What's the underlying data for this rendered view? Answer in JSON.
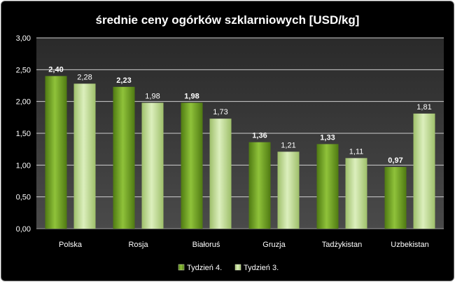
{
  "chart_data": {
    "type": "bar",
    "title": "średnie ceny ogórków szklarniowych [USD/kg]",
    "categories": [
      "Polska",
      "Rosja",
      "Białoruś",
      "Gruzja",
      "Tadżykistan",
      "Uzbekistan"
    ],
    "series": [
      {
        "name": "Tydzień 4.",
        "values": [
          2.4,
          2.23,
          1.98,
          1.36,
          1.33,
          0.97
        ],
        "color": "#7aa82a",
        "labels": [
          "2,40",
          "2,23",
          "1,98",
          "1,36",
          "1,33",
          "0,97"
        ],
        "label_bold": true
      },
      {
        "name": "Tydzień 3.",
        "values": [
          2.28,
          1.98,
          1.73,
          1.21,
          1.11,
          1.81
        ],
        "color": "#c4df96",
        "labels": [
          "2,28",
          "1,98",
          "1,73",
          "1,21",
          "1,11",
          "1,81"
        ],
        "label_bold": false
      }
    ],
    "ylim": [
      0,
      3
    ],
    "yticks": [
      0,
      0.5,
      1,
      1.5,
      2,
      2.5,
      3
    ],
    "ytick_labels": [
      "0,00",
      "0,50",
      "1,00",
      "1,50",
      "2,00",
      "2,50",
      "3,00"
    ],
    "grid": true,
    "legend_position": "bottom",
    "background": "#000000",
    "plot_background": "#3c3c3c"
  }
}
